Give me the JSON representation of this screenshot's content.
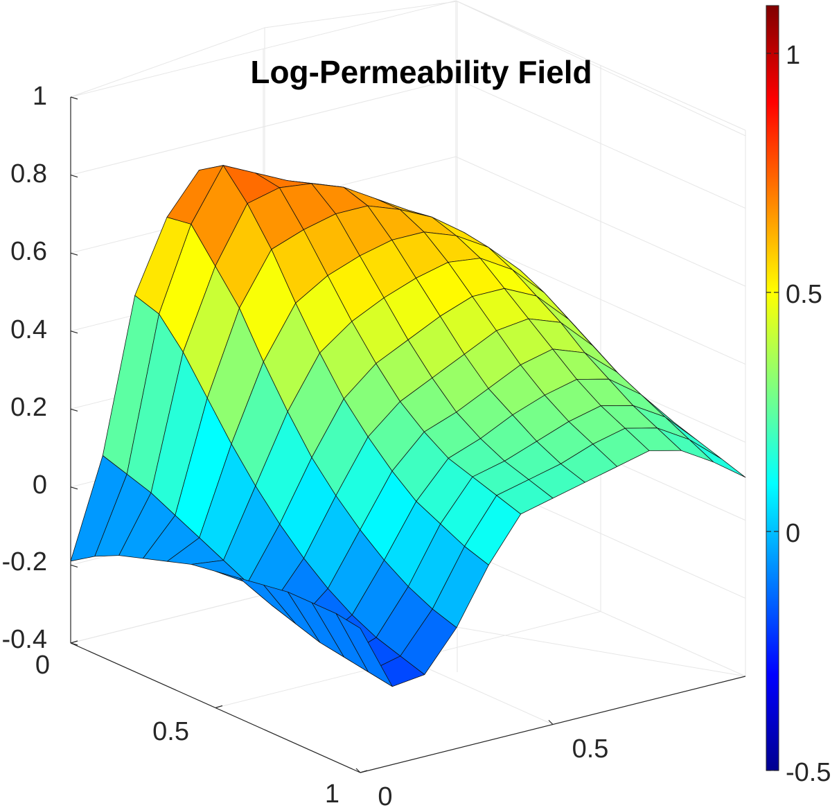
{
  "chart_data": {
    "type": "surface",
    "title": "Log-Permeability Field",
    "x_ticks": [
      0,
      0.5
    ],
    "y_ticks": [
      0,
      0.5,
      1
    ],
    "z_ticks": [
      "1",
      "0.8",
      "0.6",
      "0.4",
      "0.2",
      "0",
      "-0.2",
      "-0.4"
    ],
    "xlim": [
      0,
      1
    ],
    "ylim": [
      0,
      1
    ],
    "zlim": [
      -0.4,
      1
    ],
    "colorbar": {
      "colormap": "jet",
      "clim": [
        -0.5,
        1.1
      ],
      "ticks": [
        "1",
        "0.5",
        "0",
        "-0.5"
      ]
    },
    "grid": true,
    "surface_z": [
      [
        -0.19,
        0.06,
        0.45,
        0.63,
        0.73,
        0.69,
        0.65,
        0.62,
        0.58,
        0.52,
        0.47,
        0.4,
        0.29
      ],
      [
        -0.15,
        0.04,
        0.43,
        0.64,
        0.77,
        0.73,
        0.69,
        0.66,
        0.61,
        0.55,
        0.49,
        0.42,
        0.31
      ],
      [
        -0.12,
        0.02,
        0.36,
        0.56,
        0.7,
        0.72,
        0.71,
        0.68,
        0.63,
        0.58,
        0.51,
        0.44,
        0.33
      ],
      [
        -0.1,
        -0.01,
        0.27,
        0.48,
        0.61,
        0.64,
        0.66,
        0.66,
        0.63,
        0.59,
        0.53,
        0.45,
        0.34
      ],
      [
        -0.08,
        -0.04,
        0.18,
        0.37,
        0.5,
        0.55,
        0.58,
        0.6,
        0.6,
        0.57,
        0.52,
        0.44,
        0.33
      ],
      [
        -0.06,
        -0.07,
        0.1,
        0.27,
        0.4,
        0.46,
        0.5,
        0.53,
        0.55,
        0.54,
        0.49,
        0.41,
        0.3
      ],
      [
        -0.05,
        -0.1,
        0.03,
        0.18,
        0.31,
        0.38,
        0.42,
        0.46,
        0.49,
        0.49,
        0.45,
        0.37,
        0.26
      ],
      [
        -0.04,
        -0.13,
        -0.03,
        0.11,
        0.24,
        0.31,
        0.35,
        0.39,
        0.43,
        0.44,
        0.41,
        0.33,
        0.22
      ],
      [
        -0.03,
        -0.15,
        -0.08,
        0.05,
        0.18,
        0.26,
        0.29,
        0.33,
        0.37,
        0.39,
        0.36,
        0.29,
        0.19
      ],
      [
        -0.02,
        -0.17,
        -0.12,
        0.0,
        0.13,
        0.22,
        0.25,
        0.29,
        0.32,
        0.34,
        0.32,
        0.26,
        0.17
      ],
      [
        -0.02,
        -0.18,
        -0.15,
        -0.04,
        0.1,
        0.2,
        0.22,
        0.25,
        0.28,
        0.3,
        0.28,
        0.23,
        0.15
      ],
      [
        -0.02,
        -0.19,
        -0.17,
        -0.07,
        0.07,
        0.18,
        0.2,
        0.22,
        0.25,
        0.27,
        0.25,
        0.2,
        0.13
      ],
      [
        -0.03,
        -0.2,
        -0.19,
        -0.09,
        0.05,
        0.16,
        0.18,
        0.2,
        0.22,
        0.24,
        0.22,
        0.17,
        0.11
      ]
    ]
  }
}
